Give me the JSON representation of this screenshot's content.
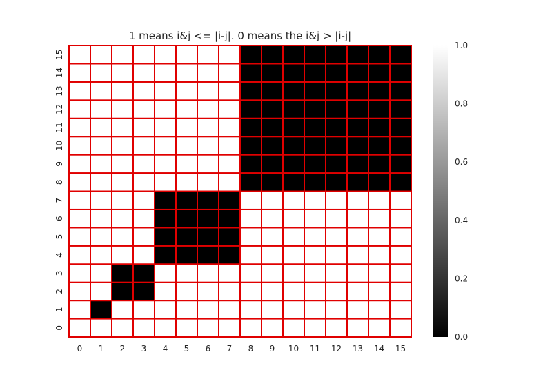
{
  "chart_data": {
    "type": "heatmap",
    "title": "1 means i&j <= |i-j|. 0 means the i&j > |i-j|",
    "x_ticks": [
      "0",
      "1",
      "2",
      "3",
      "4",
      "5",
      "6",
      "7",
      "8",
      "9",
      "10",
      "11",
      "12",
      "13",
      "14",
      "15"
    ],
    "y_ticks": [
      "0",
      "1",
      "2",
      "3",
      "4",
      "5",
      "6",
      "7",
      "8",
      "9",
      "10",
      "11",
      "12",
      "13",
      "14",
      "15"
    ],
    "y_order": "bottom-to-top",
    "matrix": [
      [
        1,
        1,
        1,
        1,
        1,
        1,
        1,
        1,
        1,
        1,
        1,
        1,
        1,
        1,
        1,
        1
      ],
      [
        1,
        0,
        1,
        1,
        1,
        1,
        1,
        1,
        1,
        1,
        1,
        1,
        1,
        1,
        1,
        1
      ],
      [
        1,
        1,
        0,
        0,
        1,
        1,
        1,
        1,
        1,
        1,
        1,
        1,
        1,
        1,
        1,
        1
      ],
      [
        1,
        1,
        0,
        0,
        1,
        1,
        1,
        1,
        1,
        1,
        1,
        1,
        1,
        1,
        1,
        1
      ],
      [
        1,
        1,
        1,
        1,
        0,
        0,
        0,
        0,
        1,
        1,
        1,
        1,
        1,
        1,
        1,
        1
      ],
      [
        1,
        1,
        1,
        1,
        0,
        0,
        0,
        0,
        1,
        1,
        1,
        1,
        1,
        1,
        1,
        1
      ],
      [
        1,
        1,
        1,
        1,
        0,
        0,
        0,
        0,
        1,
        1,
        1,
        1,
        1,
        1,
        1,
        1
      ],
      [
        1,
        1,
        1,
        1,
        0,
        0,
        0,
        0,
        1,
        1,
        1,
        1,
        1,
        1,
        1,
        1
      ],
      [
        1,
        1,
        1,
        1,
        1,
        1,
        1,
        1,
        0,
        0,
        0,
        0,
        0,
        0,
        0,
        0
      ],
      [
        1,
        1,
        1,
        1,
        1,
        1,
        1,
        1,
        0,
        0,
        0,
        0,
        0,
        0,
        0,
        0
      ],
      [
        1,
        1,
        1,
        1,
        1,
        1,
        1,
        1,
        0,
        0,
        0,
        0,
        0,
        0,
        0,
        0
      ],
      [
        1,
        1,
        1,
        1,
        1,
        1,
        1,
        1,
        0,
        0,
        0,
        0,
        0,
        0,
        0,
        0
      ],
      [
        1,
        1,
        1,
        1,
        1,
        1,
        1,
        1,
        0,
        0,
        0,
        0,
        0,
        0,
        0,
        0
      ],
      [
        1,
        1,
        1,
        1,
        1,
        1,
        1,
        1,
        0,
        0,
        0,
        0,
        0,
        0,
        0,
        0
      ],
      [
        1,
        1,
        1,
        1,
        1,
        1,
        1,
        1,
        0,
        0,
        0,
        0,
        0,
        0,
        0,
        0
      ],
      [
        1,
        1,
        1,
        1,
        1,
        1,
        1,
        1,
        0,
        0,
        0,
        0,
        0,
        0,
        0,
        0
      ]
    ],
    "colormap": "gray",
    "value_range": [
      0.0,
      1.0
    ],
    "cell_border_color": "#e00000",
    "colorbar": {
      "ticks": [
        {
          "value": 0.0,
          "label": "0.0"
        },
        {
          "value": 0.2,
          "label": "0.2"
        },
        {
          "value": 0.4,
          "label": "0.4"
        },
        {
          "value": 0.6,
          "label": "0.6"
        },
        {
          "value": 0.8,
          "label": "0.8"
        },
        {
          "value": 1.0,
          "label": "1.0"
        }
      ]
    },
    "legend": "colorbar-right",
    "grid": false
  }
}
